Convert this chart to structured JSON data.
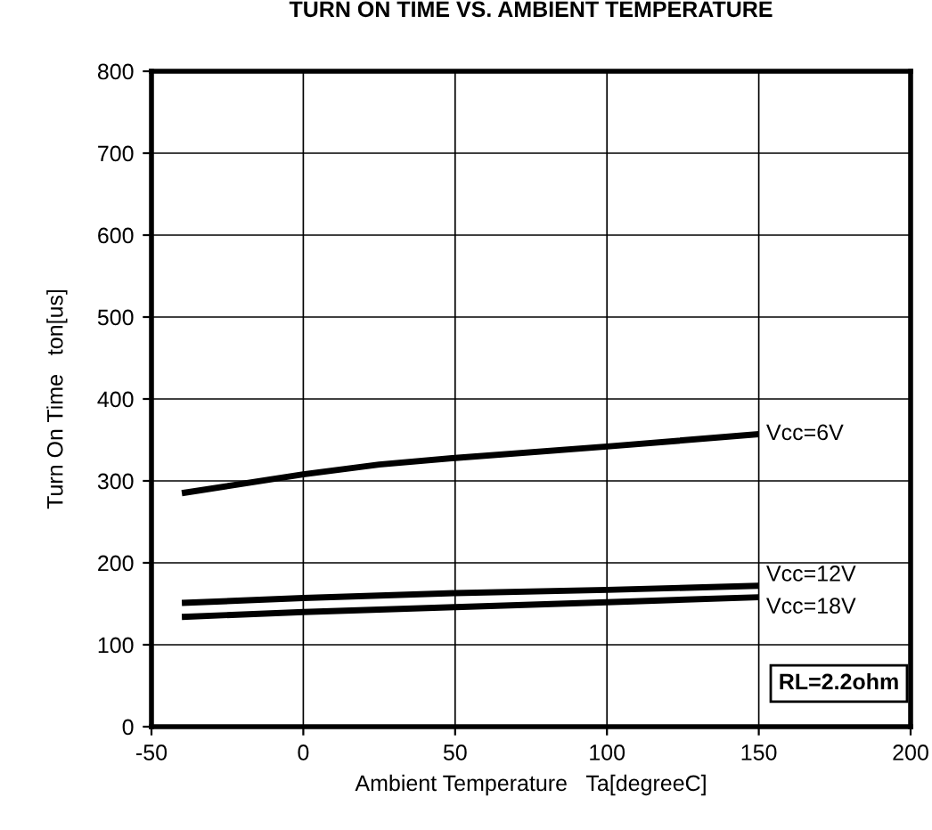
{
  "chart_data": {
    "type": "line",
    "title": "TURN ON TIME VS. AMBIENT TEMPERATURE",
    "xlabel": "Ambient Temperature   Ta[degreeC]",
    "ylabel": "Turn On Time   ton[us]",
    "x": [
      -40,
      0,
      25,
      50,
      100,
      150
    ],
    "series": [
      {
        "name": "Vcc=6V",
        "color": "#000000",
        "values": [
          285,
          308,
          320,
          328,
          342,
          357
        ]
      },
      {
        "name": "Vcc=12V",
        "color": "#000000",
        "values": [
          151,
          157,
          160,
          163,
          167,
          172
        ]
      },
      {
        "name": "Vcc=18V",
        "color": "#000000",
        "values": [
          134,
          140,
          143,
          146,
          152,
          158
        ]
      }
    ],
    "xlim": [
      -50,
      200
    ],
    "xticks": [
      -50,
      0,
      50,
      100,
      150,
      200
    ],
    "ylim": [
      0,
      800
    ],
    "yticks": [
      0,
      100,
      200,
      300,
      400,
      500,
      600,
      700,
      800
    ],
    "grid": true,
    "legend": false,
    "annotations": [
      "RL=2.2ohm"
    ]
  }
}
